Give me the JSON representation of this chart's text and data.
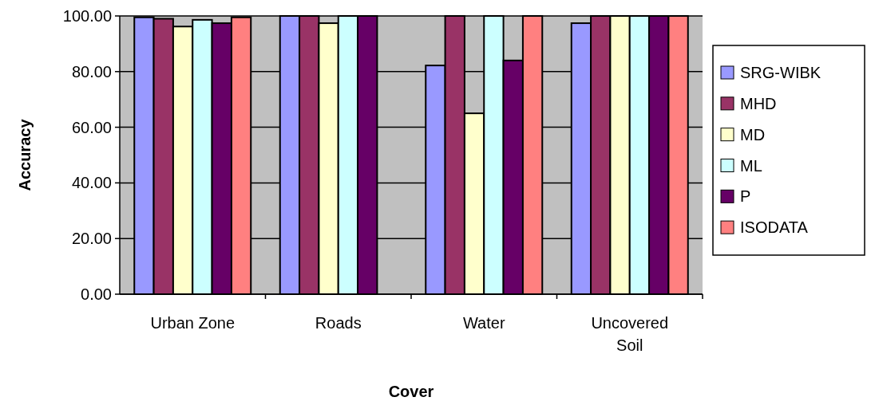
{
  "chart_data": {
    "type": "bar",
    "xlabel": "Cover",
    "ylabel": "Accuracy",
    "categories": [
      "Urban Zone",
      "Roads",
      "Water",
      "Uncovered Soil"
    ],
    "ylim": [
      0,
      100
    ],
    "yticks": [
      {
        "value": 0,
        "label": "0.00"
      },
      {
        "value": 20,
        "label": "20.00"
      },
      {
        "value": 40,
        "label": "40.00"
      },
      {
        "value": 60,
        "label": "60.00"
      },
      {
        "value": 80,
        "label": "80.00"
      },
      {
        "value": 100,
        "label": "100.00"
      }
    ],
    "grid": "y",
    "legend": "right",
    "series": [
      {
        "name": "SRG-WIBK",
        "color": "#9999ff",
        "values": [
          99.5,
          100,
          82.2,
          97.4
        ]
      },
      {
        "name": "MHD",
        "color": "#993366",
        "values": [
          99,
          100,
          100,
          100
        ]
      },
      {
        "name": "MD",
        "color": "#ffffcc",
        "values": [
          96.2,
          97.4,
          65,
          100
        ]
      },
      {
        "name": "ML",
        "color": "#ccffff",
        "values": [
          98.6,
          100,
          100,
          100
        ]
      },
      {
        "name": "P",
        "color": "#660066",
        "values": [
          97.4,
          100,
          84,
          100
        ]
      },
      {
        "name": "ISODATA",
        "color": "#ff8080",
        "values": [
          99.5,
          null,
          100,
          100
        ]
      }
    ]
  }
}
